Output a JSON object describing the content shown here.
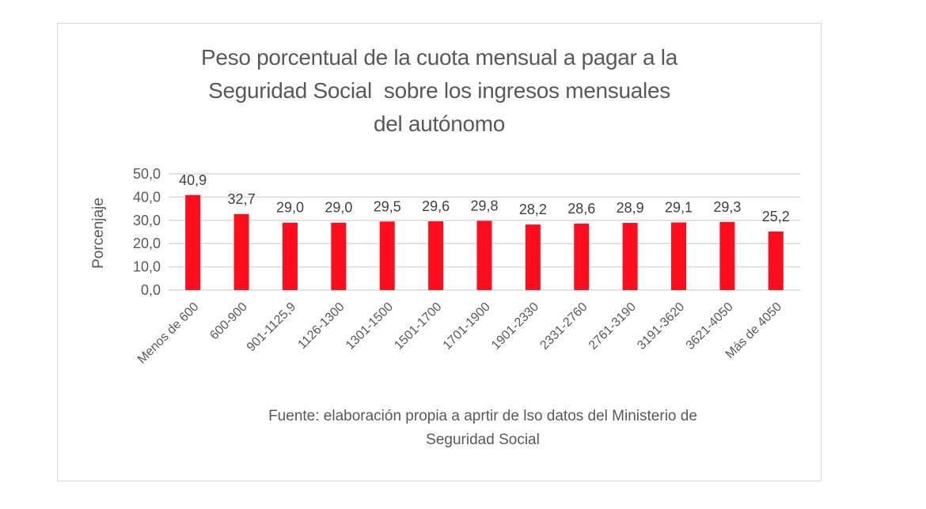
{
  "chart_data": {
    "type": "bar",
    "title": "Peso porcentual de la cuota mensual a pagar a la Seguridad Social  sobre los ingresos mensuales del autónomo",
    "title_lines": [
      "Peso porcentual de la cuota mensual a pagar a la",
      "Seguridad Social  sobre los ingresos mensuales",
      "del autónomo"
    ],
    "xlabel": "",
    "ylabel": "Porcenjaje",
    "ylim": [
      0,
      50
    ],
    "yticks": [
      "0,0",
      "10,0",
      "20,0",
      "30,0",
      "40,0",
      "50,0"
    ],
    "ytick_values": [
      0,
      10,
      20,
      30,
      40,
      50
    ],
    "grid": true,
    "legend": "none",
    "bar_color": "#ff0d1c",
    "categories": [
      "Menos de 600",
      "600-900",
      "901-1125,9",
      "1126-1300",
      "1301-1500",
      "1501-1700",
      "1701-1900",
      "1901-2330",
      "2331-2760",
      "2761-3190",
      "3191-3620",
      "3621-4050",
      "Más de 4050"
    ],
    "values": [
      40.9,
      32.7,
      29.0,
      29.0,
      29.5,
      29.6,
      29.8,
      28.2,
      28.6,
      28.9,
      29.1,
      29.3,
      25.2
    ],
    "data_labels": [
      "40,9",
      "32,7",
      "29,0",
      "29,0",
      "29,5",
      "29,6",
      "29,8",
      "28,2",
      "28,6",
      "28,9",
      "29,1",
      "29,3",
      "25,2"
    ],
    "source_lines": [
      "Fuente: elaboración propia a aprtir de lso datos del Ministerio de",
      "Seguridad Social"
    ]
  }
}
